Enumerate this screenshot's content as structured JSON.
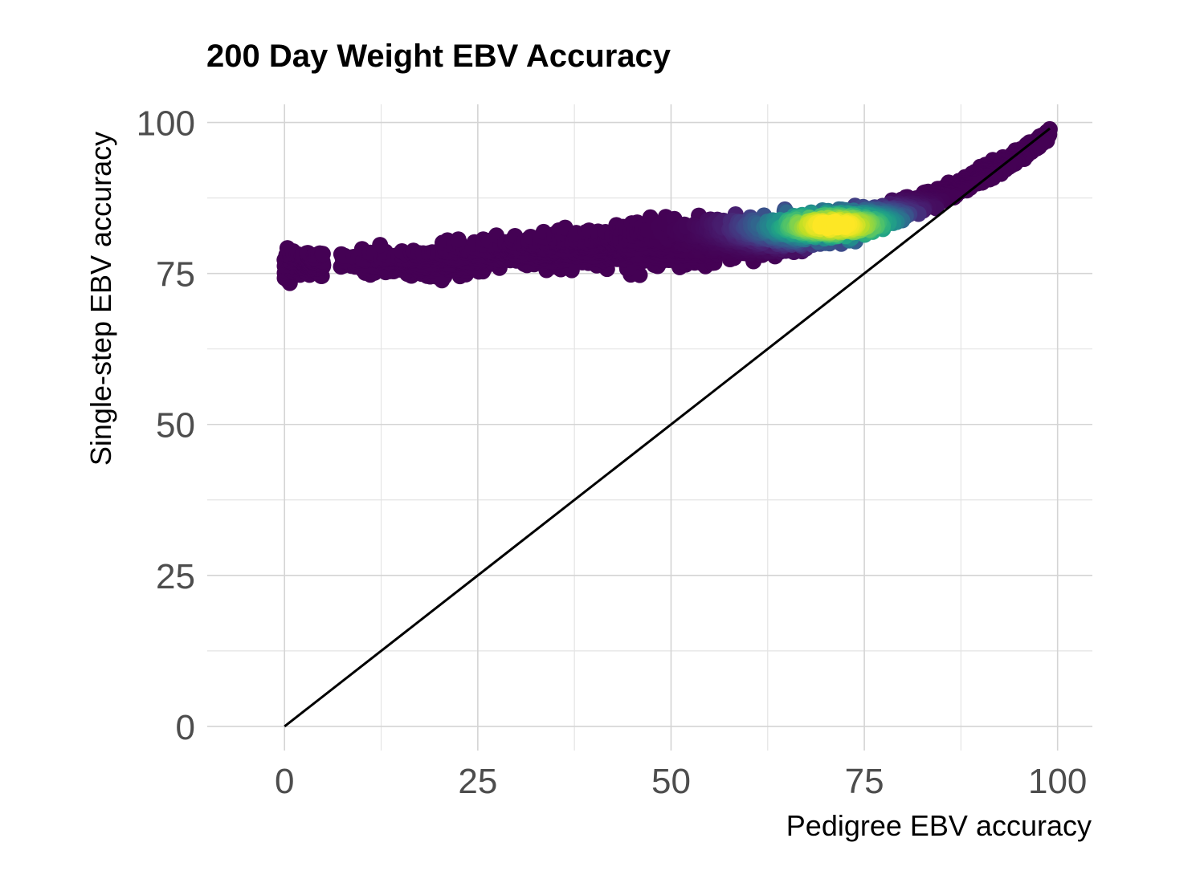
{
  "chart_data": {
    "type": "scatter",
    "title": "200 Day Weight EBV Accuracy",
    "xlabel": "Pedigree EBV accuracy",
    "ylabel": "Single-step EBV accuracy",
    "xlim": [
      -10,
      104.5
    ],
    "ylim": [
      -4,
      103
    ],
    "x_ticks": [
      0,
      25,
      50,
      75,
      100
    ],
    "y_ticks": [
      0,
      25,
      50,
      75,
      100
    ],
    "x_tick_labels": [
      "0",
      "25",
      "50",
      "75",
      "100"
    ],
    "y_tick_labels": [
      "0",
      "25",
      "50",
      "75",
      "100"
    ],
    "grid": true,
    "legend": "none",
    "color_scale": "viridis (point density)",
    "reference_line": {
      "type": "identity",
      "from": [
        0,
        0
      ],
      "to": [
        99,
        99
      ],
      "color": "#000000"
    },
    "series": [
      {
        "kind": "point-cloud-trend",
        "x": [
          0,
          2,
          5,
          10,
          15,
          20,
          25,
          30,
          35,
          40,
          45,
          50,
          55,
          60,
          65,
          70,
          75,
          80,
          85,
          90,
          95,
          99
        ],
        "y_low": [
          72,
          74,
          74,
          74,
          74,
          73,
          74,
          75,
          75,
          75,
          74,
          75,
          75,
          76,
          77,
          79,
          80,
          83,
          86,
          89,
          93,
          97
        ],
        "y_high": [
          81,
          80,
          79,
          80,
          80,
          81,
          82,
          82,
          83,
          84,
          85,
          85,
          86,
          86,
          86,
          87,
          87,
          88,
          90,
          93,
          96,
          99
        ]
      }
    ],
    "density_peak": {
      "x": 71,
      "y": 83
    }
  }
}
